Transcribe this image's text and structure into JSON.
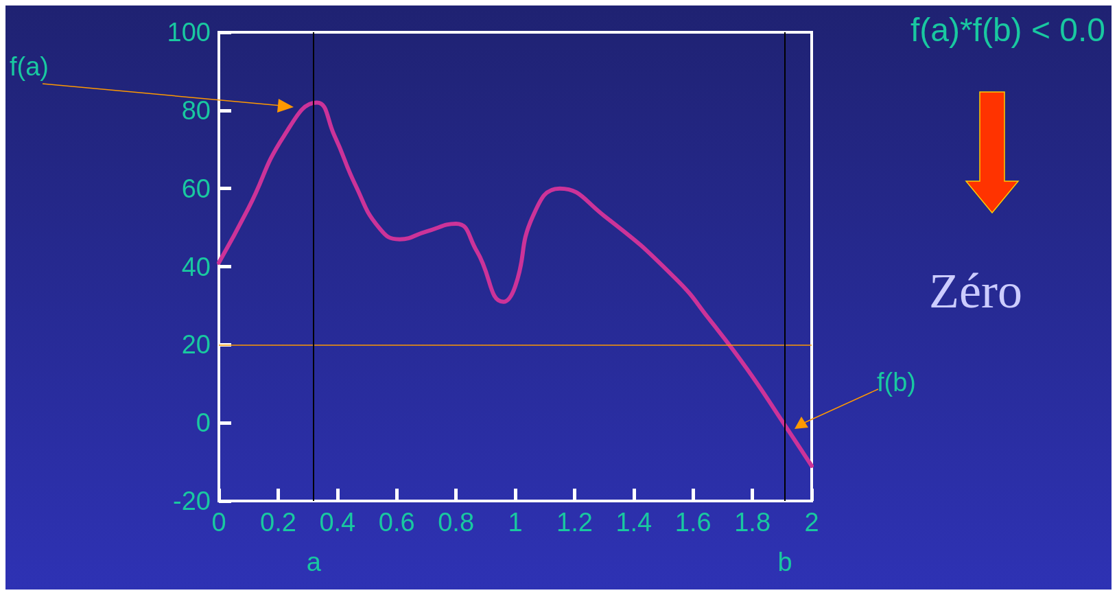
{
  "chart_data": {
    "type": "line",
    "title": "f(a)*f(b) < 0.0",
    "x": [
      0,
      0.1,
      0.22,
      0.33,
      0.39,
      0.46,
      0.54,
      0.61,
      0.7,
      0.8,
      0.87,
      0.96,
      1.0,
      1.06,
      1.15,
      1.3,
      1.54,
      1.66,
      1.78,
      1.9,
      2.0
    ],
    "series": [
      {
        "color": "#cc3399",
        "values": [
          41,
          55,
          73.5,
          82,
          73.5,
          61,
          50,
          47,
          49,
          51,
          44,
          31,
          35,
          53,
          60,
          53,
          37,
          26,
          14,
          0.5,
          -11
        ]
      }
    ],
    "xlim": [
      0,
      2
    ],
    "xticks": [
      0,
      0.2,
      0.4,
      0.6,
      0.8,
      1,
      1.2,
      1.4,
      1.6,
      1.8,
      2
    ],
    "ylim": [
      -20,
      100
    ],
    "yticks": [
      -20,
      0,
      20,
      40,
      60,
      80,
      100
    ],
    "grid": false,
    "marker": "none",
    "line_style": "solid",
    "ref_lines": [
      {
        "axis": "y",
        "value": 20,
        "color": "#ff9900"
      },
      {
        "axis": "x",
        "value": 0.32,
        "label": "a",
        "color": "#000000"
      },
      {
        "axis": "x",
        "value": 1.91,
        "label": "b",
        "color": "#000000"
      }
    ],
    "annotations": [
      "f(a)",
      "f(b)",
      "Zéro"
    ]
  }
}
